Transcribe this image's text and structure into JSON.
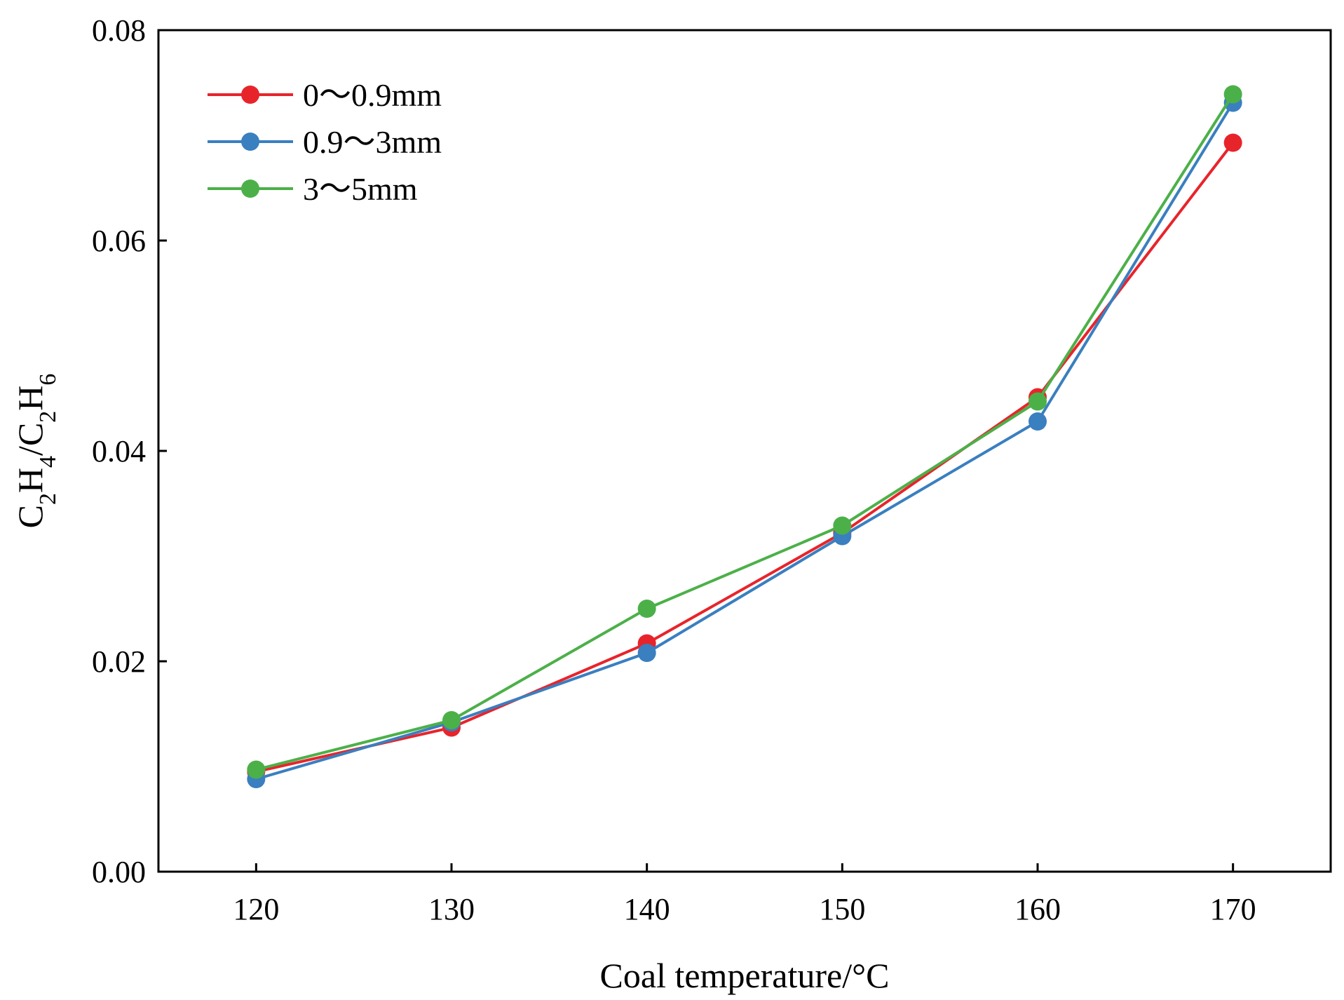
{
  "chart_data": {
    "type": "line",
    "title": "",
    "xlabel": "Coal temperature/°C",
    "ylabel": {
      "parts": [
        {
          "text": "C",
          "sub": false
        },
        {
          "text": "2",
          "sub": true
        },
        {
          "text": "H",
          "sub": false
        },
        {
          "text": "4",
          "sub": true
        },
        {
          "text": "/C",
          "sub": false
        },
        {
          "text": "2",
          "sub": true
        },
        {
          "text": "H",
          "sub": false
        },
        {
          "text": "6",
          "sub": true
        }
      ]
    },
    "x": [
      120,
      130,
      140,
      150,
      160,
      170
    ],
    "xlim": [
      115,
      175
    ],
    "ylim": [
      0,
      0.08
    ],
    "xticks": [
      "120",
      "130",
      "140",
      "150",
      "160",
      "170"
    ],
    "yticks": [
      {
        "value": 0,
        "label": "0.00"
      },
      {
        "value": 0.02,
        "label": "0.02"
      },
      {
        "value": 0.04,
        "label": "0.04"
      },
      {
        "value": 0.06,
        "label": "0.06"
      },
      {
        "value": 0.08,
        "label": "0.08"
      }
    ],
    "grid": false,
    "legend_position": "top-left",
    "series": [
      {
        "name": "0～0.9mm",
        "color": "#e8242b",
        "values": [
          0.0095,
          0.0137,
          0.0217,
          0.0322,
          0.0451,
          0.0693
        ]
      },
      {
        "name": "0.9～3mm",
        "color": "#3a7fc0",
        "values": [
          0.0088,
          0.0142,
          0.0208,
          0.0319,
          0.0428,
          0.0731
        ]
      },
      {
        "name": "3～5mm",
        "color": "#4cb049",
        "values": [
          0.0097,
          0.0144,
          0.025,
          0.0329,
          0.0447,
          0.0739
        ]
      }
    ]
  }
}
